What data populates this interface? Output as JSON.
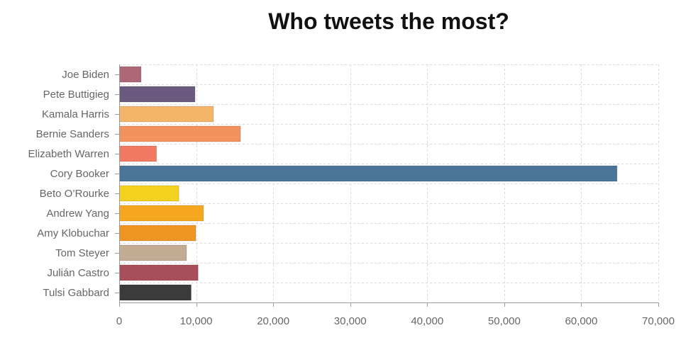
{
  "chart_data": {
    "type": "bar",
    "orientation": "horizontal",
    "title": "Who tweets the most?",
    "xlabel": "",
    "ylabel": "",
    "xlim": [
      0,
      70000
    ],
    "grid": true,
    "x_ticks": [
      "0",
      "10,000",
      "20,000",
      "30,000",
      "40,000",
      "50,000",
      "60,000",
      "70,000"
    ],
    "x_tick_values": [
      0,
      10000,
      20000,
      30000,
      40000,
      50000,
      60000,
      70000
    ],
    "categories": [
      "Joe Biden",
      "Pete Buttigieg",
      "Kamala Harris",
      "Bernie Sanders",
      "Elizabeth Warren",
      "Cory Booker",
      "Beto O’Rourke",
      "Andrew Yang",
      "Amy Klobuchar",
      "Tom Steyer",
      "Julián Castro",
      "Tulsi Gabbard"
    ],
    "values": [
      2800,
      9800,
      12200,
      15700,
      4800,
      64600,
      7700,
      10900,
      9900,
      8700,
      10200,
      9300
    ],
    "colors": [
      "#ac6876",
      "#6a5a80",
      "#f2b56a",
      "#f2925c",
      "#f27a63",
      "#4a7498",
      "#f2d21e",
      "#f5a81f",
      "#f09522",
      "#c4ab94",
      "#a94f59",
      "#3b3b3b"
    ]
  }
}
